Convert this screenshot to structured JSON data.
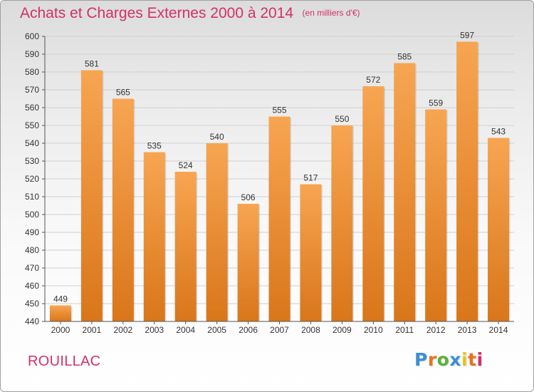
{
  "title": "Achats et Charges Externes 2000 à 2014",
  "unit_label": "(en milliers d'€)",
  "place": "ROUILLAC",
  "logo_text": "Proxiti",
  "colors": {
    "title": "#d2306a",
    "bar_light": "#f7a552",
    "bar_dark": "#d9761a",
    "logo": [
      "#3a8fd6",
      "#e8731c",
      "#5bb13a",
      "#3a8fd6",
      "#e8c21c",
      "#e8731c",
      "#d2306a"
    ]
  },
  "chart_data": {
    "type": "bar",
    "categories": [
      "2000",
      "2001",
      "2002",
      "2003",
      "2004",
      "2005",
      "2006",
      "2007",
      "2008",
      "2009",
      "2010",
      "2011",
      "2012",
      "2013",
      "2014"
    ],
    "values": [
      449,
      581,
      565,
      535,
      524,
      540,
      506,
      555,
      517,
      550,
      572,
      585,
      559,
      597,
      543
    ],
    "ylim": [
      440,
      600
    ],
    "yticks": [
      440,
      450,
      460,
      470,
      480,
      490,
      500,
      510,
      520,
      530,
      540,
      550,
      560,
      570,
      580,
      590,
      600
    ],
    "grid": true,
    "xlabel": "",
    "ylabel": ""
  }
}
